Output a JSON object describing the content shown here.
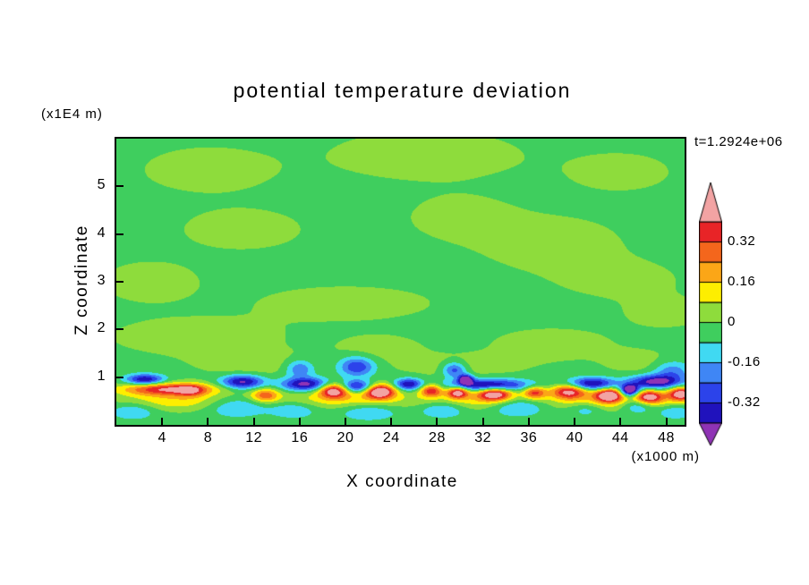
{
  "chart_data": {
    "type": "heatmap",
    "title": "potential temperature deviation",
    "time_label": "t=1.2924e+06",
    "xlabel": "X coordinate",
    "ylabel": "Z coordinate",
    "x_axis_units_label": "(x1000 m)",
    "y_axis_units_label": "(x1E4 m)",
    "xlim": [
      0,
      49.6
    ],
    "ylim": [
      0,
      6.0
    ],
    "x_ticks": [
      4,
      8,
      12,
      16,
      20,
      24,
      28,
      32,
      36,
      40,
      44,
      48
    ],
    "y_ticks": [
      1,
      2,
      3,
      4,
      5
    ],
    "legend_position": "right-colorbar",
    "grid": false,
    "levels": [
      -0.4,
      -0.32,
      -0.24,
      -0.16,
      -0.08,
      0,
      0.08,
      0.16,
      0.24,
      0.32,
      0.4
    ],
    "colorbar_tick_labels": [
      "0.32",
      "0.16",
      "0",
      "-0.16",
      "-0.32"
    ],
    "band_colors": [
      "#2012bc",
      "#2c43ea",
      "#3f86f5",
      "#40d9f2",
      "#3fce5e",
      "#8edc3c",
      "#fdee00",
      "#fba617",
      "#f4661c",
      "#e82427"
    ],
    "below_color": "#8f33b5",
    "above_color": "#f2a3a3",
    "frame_color": "#000000",
    "field": {
      "background": -0.03,
      "blobs": [
        [
          8,
          5.35,
          6,
          0.5,
          0.07
        ],
        [
          27,
          5.65,
          9,
          0.55,
          0.07
        ],
        [
          44,
          5.3,
          5,
          0.45,
          0.06
        ],
        [
          11,
          4.1,
          5.5,
          0.45,
          0.07
        ],
        [
          30,
          4.35,
          5,
          0.5,
          0.06
        ],
        [
          38,
          3.8,
          6.5,
          0.6,
          0.07
        ],
        [
          3,
          3.0,
          4.5,
          0.45,
          0.07
        ],
        [
          20,
          2.55,
          8,
          0.38,
          0.07
        ],
        [
          44,
          3.05,
          5.5,
          0.42,
          0.06
        ],
        [
          48,
          2.35,
          4,
          0.35,
          0.06
        ],
        [
          7,
          1.85,
          8,
          0.42,
          0.07
        ],
        [
          23,
          1.62,
          4,
          0.3,
          0.06
        ],
        [
          38,
          1.7,
          6,
          0.38,
          0.06
        ],
        [
          12,
          1.28,
          5,
          0.28,
          0.07
        ],
        [
          30,
          1.22,
          6,
          0.28,
          0.06
        ],
        [
          46,
          1.3,
          3.5,
          0.28,
          0.06
        ],
        [
          16,
          1.18,
          1.2,
          0.18,
          -0.22
        ],
        [
          21,
          1.22,
          1.5,
          0.2,
          -0.3
        ],
        [
          29.5,
          1.15,
          1.0,
          0.16,
          -0.28
        ],
        [
          48.5,
          1.12,
          1.6,
          0.22,
          -0.2
        ],
        [
          2.5,
          0.95,
          1.6,
          0.11,
          -0.38
        ],
        [
          11,
          0.9,
          1.8,
          0.14,
          -0.4
        ],
        [
          16.5,
          0.85,
          2.0,
          0.14,
          -0.42
        ],
        [
          21,
          0.8,
          1.4,
          0.13,
          -0.38
        ],
        [
          25.5,
          0.85,
          1.2,
          0.12,
          -0.38
        ],
        [
          32.5,
          0.83,
          3.5,
          0.13,
          -0.42
        ],
        [
          41.5,
          0.86,
          2.0,
          0.13,
          -0.4
        ],
        [
          47,
          0.9,
          2.2,
          0.14,
          -0.42
        ],
        [
          44.8,
          0.72,
          0.8,
          0.12,
          -0.6
        ],
        [
          30.5,
          0.95,
          0.6,
          0.1,
          -0.5
        ],
        [
          4.5,
          0.75,
          4.0,
          0.13,
          0.42
        ],
        [
          6.5,
          0.72,
          1.2,
          0.13,
          0.2
        ],
        [
          13,
          0.62,
          1.2,
          0.14,
          0.3
        ],
        [
          19,
          0.72,
          1.3,
          0.15,
          0.48
        ],
        [
          23,
          0.7,
          1.3,
          0.15,
          0.55
        ],
        [
          27.5,
          0.72,
          1.0,
          0.13,
          0.4
        ],
        [
          29.8,
          0.68,
          0.9,
          0.12,
          0.5
        ],
        [
          33,
          0.65,
          1.5,
          0.14,
          0.52
        ],
        [
          36.5,
          0.68,
          1.0,
          0.13,
          0.36
        ],
        [
          39.5,
          0.7,
          1.5,
          0.15,
          0.44
        ],
        [
          43,
          0.62,
          1.2,
          0.14,
          0.5
        ],
        [
          46.5,
          0.58,
          1.2,
          0.14,
          0.44
        ],
        [
          49.3,
          0.65,
          1.1,
          0.14,
          0.5
        ],
        [
          5,
          0.5,
          5,
          0.2,
          0.16
        ],
        [
          20,
          0.55,
          6,
          0.22,
          0.16
        ],
        [
          32,
          0.5,
          5,
          0.2,
          0.15
        ],
        [
          44,
          0.52,
          6,
          0.22,
          0.18
        ],
        [
          1.5,
          0.3,
          2,
          0.18,
          -0.14
        ],
        [
          10.5,
          0.38,
          2.5,
          0.2,
          -0.16
        ],
        [
          15.5,
          0.32,
          2,
          0.17,
          -0.14
        ],
        [
          22,
          0.28,
          2.5,
          0.18,
          -0.14
        ],
        [
          28.5,
          0.33,
          2,
          0.17,
          -0.16
        ],
        [
          35,
          0.4,
          2.5,
          0.2,
          -0.2
        ],
        [
          41,
          0.33,
          1.5,
          0.15,
          -0.12
        ],
        [
          45.5,
          0.42,
          1.5,
          0.17,
          -0.22
        ],
        [
          48.8,
          0.28,
          1.5,
          0.15,
          -0.14
        ]
      ]
    }
  }
}
